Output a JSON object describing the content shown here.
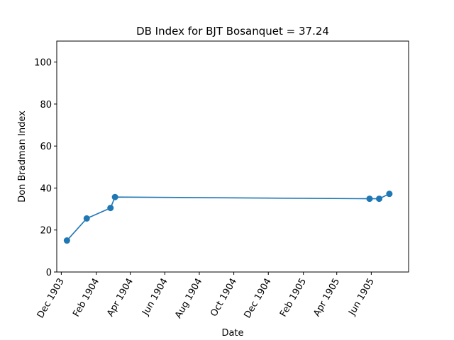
{
  "chart_data": {
    "type": "line",
    "title": "DB Index for BJT Bosanquet = 37.24",
    "xlabel": "Date",
    "ylabel": "Don Bradman Index",
    "ylim": [
      0,
      110
    ],
    "xlim": [
      "1903-11-23",
      "1905-08-06"
    ],
    "yticks": [
      0,
      20,
      40,
      60,
      80,
      100
    ],
    "xticks": [
      {
        "date": "1903-12-01",
        "label": "Dec 1903"
      },
      {
        "date": "1904-02-01",
        "label": "Feb 1904"
      },
      {
        "date": "1904-04-01",
        "label": "Apr 1904"
      },
      {
        "date": "1904-06-01",
        "label": "Jun 1904"
      },
      {
        "date": "1904-08-01",
        "label": "Aug 1904"
      },
      {
        "date": "1904-10-01",
        "label": "Oct 1904"
      },
      {
        "date": "1904-12-01",
        "label": "Dec 1904"
      },
      {
        "date": "1905-02-01",
        "label": "Feb 1905"
      },
      {
        "date": "1905-04-01",
        "label": "Apr 1905"
      },
      {
        "date": "1905-06-01",
        "label": "Jun 1905"
      }
    ],
    "grid": false,
    "series": [
      {
        "color": "#1f77b4",
        "points": [
          {
            "x": "1903-12-11",
            "y": 15.0
          },
          {
            "x": "1904-01-15",
            "y": 25.5
          },
          {
            "x": "1904-02-26",
            "y": 30.5
          },
          {
            "x": "1904-03-05",
            "y": 35.7
          },
          {
            "x": "1905-05-29",
            "y": 34.9
          },
          {
            "x": "1905-06-15",
            "y": 34.9
          },
          {
            "x": "1905-07-03",
            "y": 37.24
          }
        ]
      }
    ]
  }
}
